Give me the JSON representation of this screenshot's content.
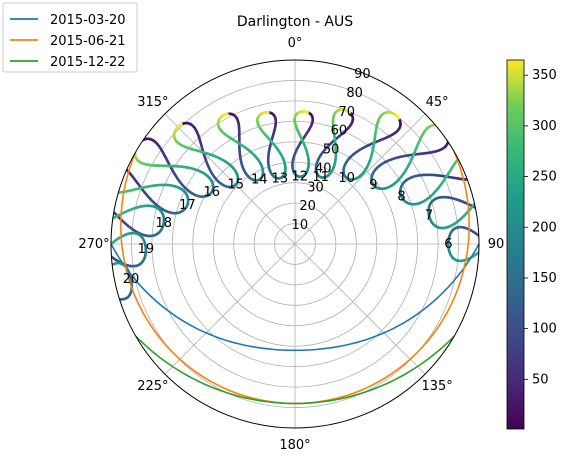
{
  "chart_data": {
    "type": "polar-line",
    "title": "Darlington - AUS",
    "legend_position": "top-left",
    "angular_axis": {
      "zero_location": "N",
      "direction": "clockwise",
      "ticks": [
        {
          "deg": 0,
          "label": "0°"
        },
        {
          "deg": 45,
          "label": "45°"
        },
        {
          "deg": 90,
          "label": "90"
        },
        {
          "deg": 135,
          "label": "135°"
        },
        {
          "deg": 180,
          "label": "180°"
        },
        {
          "deg": 225,
          "label": "225°"
        },
        {
          "deg": 270,
          "label": "270°"
        },
        {
          "deg": 315,
          "label": "315°"
        }
      ]
    },
    "radial_axis": {
      "range": [
        0,
        90
      ],
      "ticks": [
        {
          "v": 10,
          "label": "10"
        },
        {
          "v": 20,
          "label": "20"
        },
        {
          "v": 30,
          "label": "30"
        },
        {
          "v": 40,
          "label": "40"
        },
        {
          "v": 50,
          "label": "50"
        },
        {
          "v": 60,
          "label": "60"
        },
        {
          "v": 70,
          "label": "70"
        },
        {
          "v": 80,
          "label": "80"
        },
        {
          "v": 90,
          "label": "90"
        }
      ]
    },
    "series": [
      {
        "name": "2015-03-20",
        "color": "#1f77b4",
        "start_az": 90,
        "end_az": 270,
        "peak_r": 52
      },
      {
        "name": "2015-06-21",
        "color": "#ff7f0e",
        "start_az": 60,
        "end_az": 300,
        "peak_r": 78
      },
      {
        "name": "2015-12-22",
        "color": "#2ca02c",
        "start_az": 120,
        "end_az": 240,
        "peak_r": 78
      }
    ],
    "analemmas": [
      {
        "hour": "6",
        "az": 90,
        "r_top": 75,
        "r_bot": 110
      },
      {
        "hour": "7",
        "az": 78,
        "r_top": 67,
        "r_bot": 106
      },
      {
        "hour": "8",
        "az": 66,
        "r_top": 57,
        "r_bot": 100
      },
      {
        "hour": "9",
        "az": 53,
        "r_top": 48,
        "r_bot": 92
      },
      {
        "hour": "10",
        "az": 38,
        "r_top": 41,
        "r_bot": 80
      },
      {
        "hour": "11",
        "az": 21,
        "r_top": 35,
        "r_bot": 70
      },
      {
        "hour": "12",
        "az": 4,
        "r_top": 33,
        "r_bot": 65
      },
      {
        "hour": "13",
        "az": 347,
        "r_top": 33,
        "r_bot": 66
      },
      {
        "hour": "14",
        "az": 331,
        "r_top": 36,
        "r_bot": 72
      },
      {
        "hour": "15",
        "az": 315,
        "r_top": 41,
        "r_bot": 81
      },
      {
        "hour": "16",
        "az": 302,
        "r_top": 48,
        "r_bot": 91
      },
      {
        "hour": "17",
        "az": 290,
        "r_top": 56,
        "r_bot": 99
      },
      {
        "hour": "18",
        "az": 279,
        "r_top": 65,
        "r_bot": 106
      },
      {
        "hour": "19",
        "az": 268,
        "r_top": 73,
        "r_bot": 110
      },
      {
        "hour": "20",
        "az": 258,
        "r_top": 82,
        "r_bot": 116
      }
    ],
    "colorbar": {
      "range": [
        1,
        365
      ],
      "ticks": [
        50,
        100,
        150,
        200,
        250,
        300,
        350
      ],
      "colormap": "viridis"
    }
  }
}
